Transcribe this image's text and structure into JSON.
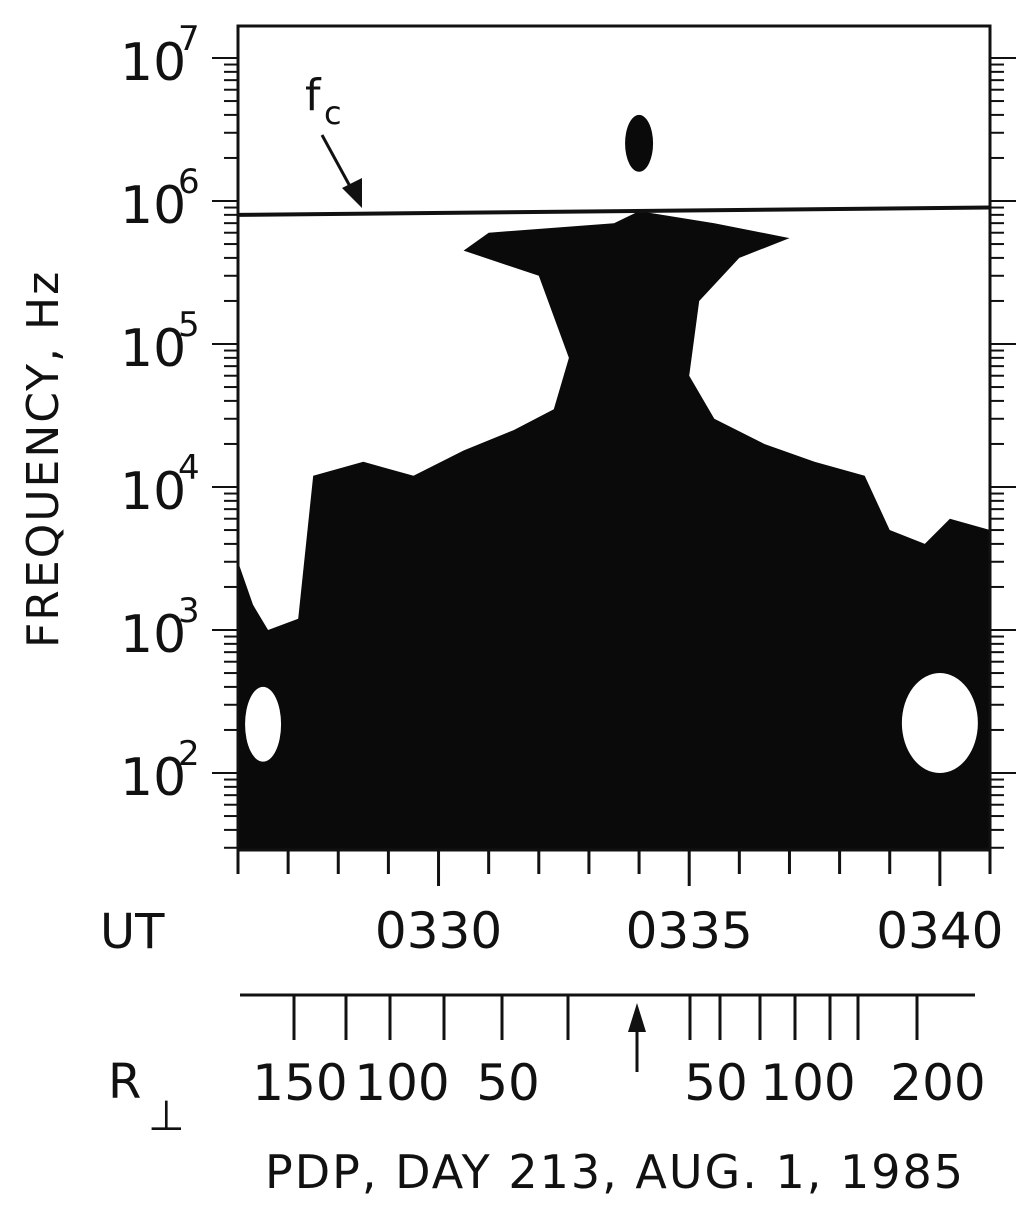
{
  "chart_data": {
    "type": "heatmap",
    "ylabel": "FREQUENCY, Hz",
    "yscale": "log",
    "ylim": [
      30,
      10000000
    ],
    "y_ticks": [
      {
        "base": "10",
        "exp": "7",
        "value": 10000000
      },
      {
        "base": "10",
        "exp": "6",
        "value": 1000000
      },
      {
        "base": "10",
        "exp": "5",
        "value": 100000
      },
      {
        "base": "10",
        "exp": "4",
        "value": 10000
      },
      {
        "base": "10",
        "exp": "3",
        "value": 1000
      },
      {
        "base": "10",
        "exp": "2",
        "value": 100
      }
    ],
    "x_axis_label": "UT",
    "xlim": [
      "03:26",
      "03:41"
    ],
    "x_ticks": [
      {
        "label": "0330",
        "time": "03:30"
      },
      {
        "label": "0335",
        "time": "03:35"
      },
      {
        "label": "0340",
        "time": "03:40"
      }
    ],
    "fc_annotation": {
      "base": "f",
      "sub": "c",
      "freq_start_hz": 800000,
      "freq_end_hz": 900000
    },
    "rperp_axis": {
      "base": "R",
      "sub": "⊥",
      "closest_approach_time": "03:34",
      "labels": [
        {
          "text": "150",
          "time": "03:27"
        },
        {
          "text": "100",
          "time": "03:29"
        },
        {
          "text": "50",
          "time": "03:31"
        },
        {
          "text": "50",
          "time": "03:36"
        },
        {
          "text": "100",
          "time": "03:37"
        },
        {
          "text": "200",
          "time": "03:39"
        }
      ]
    },
    "caption": "PDP, DAY 213, AUG. 1, 1985",
    "noise_region_upper_envelope": [
      {
        "time": "03:26.0",
        "freq_hz": 3000
      },
      {
        "time": "03:26.3",
        "freq_hz": 1500
      },
      {
        "time": "03:26.6",
        "freq_hz": 1000
      },
      {
        "time": "03:27.2",
        "freq_hz": 1200
      },
      {
        "time": "03:27.5",
        "freq_hz": 12000
      },
      {
        "time": "03:28.5",
        "freq_hz": 15000
      },
      {
        "time": "03:29.5",
        "freq_hz": 12000
      },
      {
        "time": "03:30.5",
        "freq_hz": 18000
      },
      {
        "time": "03:31.5",
        "freq_hz": 25000
      },
      {
        "time": "03:32.3",
        "freq_hz": 35000
      },
      {
        "time": "03:32.6",
        "freq_hz": 80000
      },
      {
        "time": "03:32.0",
        "freq_hz": 300000
      },
      {
        "time": "03:30.5",
        "freq_hz": 450000
      },
      {
        "time": "03:31.0",
        "freq_hz": 600000
      },
      {
        "time": "03:33.5",
        "freq_hz": 700000
      },
      {
        "time": "03:34.0",
        "freq_hz": 850000
      },
      {
        "time": "03:35.5",
        "freq_hz": 700000
      },
      {
        "time": "03:37.0",
        "freq_hz": 550000
      },
      {
        "time": "03:36.0",
        "freq_hz": 400000
      },
      {
        "time": "03:35.2",
        "freq_hz": 200000
      },
      {
        "time": "03:35.0",
        "freq_hz": 60000
      },
      {
        "time": "03:35.5",
        "freq_hz": 30000
      },
      {
        "time": "03:36.5",
        "freq_hz": 20000
      },
      {
        "time": "03:37.5",
        "freq_hz": 15000
      },
      {
        "time": "03:38.5",
        "freq_hz": 12000
      },
      {
        "time": "03:39.0",
        "freq_hz": 5000
      },
      {
        "time": "03:39.7",
        "freq_hz": 4000
      },
      {
        "time": "03:40.2",
        "freq_hz": 6000
      },
      {
        "time": "03:41.0",
        "freq_hz": 5000
      }
    ],
    "noise_region_lower_limit_hz": 30,
    "isolated_features": [
      {
        "name": "emission-above-fc",
        "time": "03:34",
        "freq_hz_range": [
          1600000,
          4000000
        ]
      },
      {
        "name": "quiet-gap-left",
        "time": "03:26.5",
        "freq_hz_range": [
          120,
          400
        ]
      },
      {
        "name": "quiet-gap-right",
        "time": "03:40",
        "freq_hz_range": [
          100,
          500
        ]
      }
    ]
  }
}
